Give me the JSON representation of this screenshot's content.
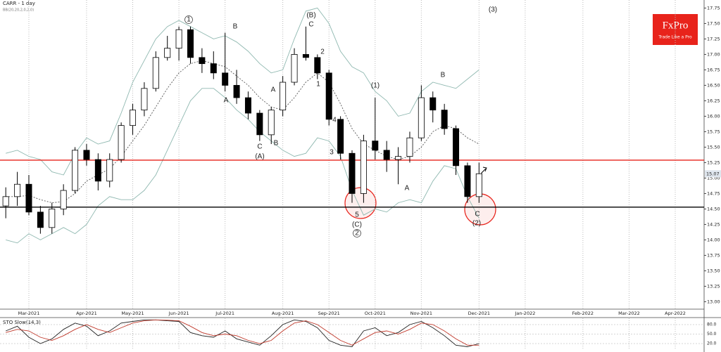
{
  "chart_data": {
    "type": "candlestick",
    "title": "CARR - 1 day",
    "subtitle": "BB(20,20,2,0,2,0)",
    "brand": {
      "name": "FxPro",
      "tagline": "Trade Like a Pro"
    },
    "categories": [
      null,
      null,
      "Mar-2021",
      null,
      null,
      null,
      null,
      "Apr-2021",
      null,
      null,
      null,
      "May-2021",
      null,
      null,
      null,
      "Jun-2021",
      null,
      null,
      null,
      "Jul-2021",
      null,
      null,
      null,
      null,
      "Aug-2021",
      null,
      null,
      null,
      "Sep-2021",
      null,
      null,
      null,
      "Oct-2021",
      null,
      null,
      null,
      "Nov-2021",
      null,
      null,
      null,
      null,
      "Dec-2021",
      null,
      null,
      null,
      "Jan-2022",
      null,
      null,
      null,
      null,
      "Feb-2022",
      null,
      null,
      null,
      "Mar-2022",
      null,
      null,
      null,
      "Apr-2022",
      null,
      null
    ],
    "open": [
      14.55,
      14.7,
      14.9,
      14.45,
      14.2,
      14.5,
      14.8,
      15.45,
      15.3,
      14.95,
      15.3,
      15.85,
      16.1,
      16.45,
      16.95,
      17.1,
      17.4,
      16.95,
      16.85,
      16.7,
      16.5,
      16.3,
      16.05,
      15.7,
      16.1,
      16.55,
      17.0,
      16.95,
      16.7,
      15.95,
      15.4,
      14.75,
      15.6,
      15.45,
      15.3,
      15.35,
      15.65,
      16.3,
      16.1,
      15.8,
      15.2,
      14.7,
      null,
      null,
      null,
      null,
      null,
      null,
      null,
      null,
      null,
      null,
      null,
      null,
      null,
      null,
      null,
      null,
      null,
      null,
      null
    ],
    "high": [
      14.85,
      15.1,
      15.05,
      14.55,
      14.6,
      14.9,
      15.5,
      15.55,
      15.4,
      15.4,
      15.9,
      16.2,
      16.55,
      17.05,
      17.3,
      17.45,
      17.45,
      17.1,
      17.05,
      17.35,
      16.75,
      16.4,
      16.1,
      16.15,
      16.65,
      17.1,
      17.45,
      17.0,
      16.75,
      16.0,
      15.45,
      15.7,
      16.3,
      15.6,
      15.5,
      15.75,
      16.5,
      16.4,
      16.2,
      15.85,
      15.25,
      15.25,
      null,
      null,
      null,
      null,
      null,
      null,
      null,
      null,
      null,
      null,
      null,
      null,
      null,
      null,
      null,
      null,
      null,
      null,
      null
    ],
    "low": [
      14.35,
      14.55,
      14.4,
      14.1,
      14.1,
      14.4,
      14.75,
      15.2,
      14.8,
      14.85,
      15.25,
      15.7,
      16.0,
      16.4,
      16.9,
      16.9,
      16.85,
      16.7,
      16.6,
      16.4,
      16.2,
      15.95,
      15.6,
      15.55,
      16.0,
      16.5,
      16.9,
      16.6,
      15.85,
      15.3,
      14.6,
      14.6,
      15.3,
      15.1,
      14.9,
      15.25,
      15.6,
      15.9,
      15.7,
      15.05,
      14.6,
      14.6,
      null,
      null,
      null,
      null,
      null,
      null,
      null,
      null,
      null,
      null,
      null,
      null,
      null,
      null,
      null,
      null,
      null,
      null,
      null
    ],
    "close": [
      14.7,
      14.9,
      14.45,
      14.2,
      14.5,
      14.8,
      15.45,
      15.3,
      14.95,
      15.3,
      15.85,
      16.1,
      16.45,
      16.95,
      17.1,
      17.4,
      16.95,
      16.85,
      16.7,
      16.5,
      16.3,
      16.05,
      15.7,
      16.1,
      16.55,
      17.0,
      16.95,
      16.7,
      15.95,
      15.4,
      14.75,
      15.6,
      15.45,
      15.3,
      15.35,
      15.65,
      16.3,
      16.1,
      15.8,
      15.2,
      14.7,
      15.07,
      null,
      null,
      null,
      null,
      null,
      null,
      null,
      null,
      null,
      null,
      null,
      null,
      null,
      null,
      null,
      null,
      null,
      null,
      null
    ],
    "series": [
      {
        "name": "BB upper",
        "color": "#8fb8b0",
        "dash": false,
        "values": [
          15.4,
          15.45,
          15.35,
          15.3,
          15.1,
          15.05,
          15.4,
          15.65,
          15.55,
          15.6,
          16.05,
          16.55,
          16.9,
          17.25,
          17.45,
          17.55,
          17.45,
          17.35,
          17.25,
          17.3,
          17.2,
          17.05,
          16.85,
          16.7,
          16.75,
          17.25,
          17.7,
          17.75,
          17.5,
          17.05,
          16.8,
          16.7,
          16.4,
          16.25,
          16.0,
          16.05,
          16.4,
          16.55,
          16.5,
          16.45,
          16.6,
          16.75,
          null,
          null,
          null,
          null,
          null,
          null,
          null,
          null,
          null,
          null,
          null,
          null,
          null,
          null,
          null,
          null,
          null,
          null,
          null
        ]
      },
      {
        "name": "BB middle",
        "color": "#555555",
        "dash": true,
        "values": [
          14.7,
          14.7,
          14.72,
          14.65,
          14.6,
          14.62,
          14.75,
          14.95,
          15.05,
          15.15,
          15.35,
          15.6,
          15.85,
          16.15,
          16.45,
          16.7,
          16.85,
          16.9,
          16.85,
          16.8,
          16.65,
          16.5,
          16.3,
          16.15,
          16.1,
          16.3,
          16.55,
          16.7,
          16.55,
          16.2,
          15.8,
          15.55,
          15.45,
          15.35,
          15.3,
          15.35,
          15.5,
          15.75,
          15.85,
          15.8,
          15.65,
          15.55,
          null,
          null,
          null,
          null,
          null,
          null,
          null,
          null,
          null,
          null,
          null,
          null,
          null,
          null,
          null,
          null,
          null,
          null,
          null
        ]
      },
      {
        "name": "BB lower",
        "color": "#8fb8b0",
        "dash": false,
        "values": [
          14.0,
          13.95,
          14.1,
          14.0,
          14.1,
          14.2,
          14.1,
          14.25,
          14.55,
          14.7,
          14.65,
          14.65,
          14.8,
          15.05,
          15.45,
          15.85,
          16.25,
          16.45,
          16.45,
          16.3,
          16.1,
          15.95,
          15.75,
          15.6,
          15.45,
          15.35,
          15.4,
          15.65,
          15.6,
          15.35,
          14.8,
          14.4,
          14.5,
          14.45,
          14.6,
          14.65,
          14.6,
          14.95,
          15.2,
          15.15,
          14.7,
          14.35,
          null,
          null,
          null,
          null,
          null,
          null,
          null,
          null,
          null,
          null,
          null,
          null,
          null,
          null,
          null,
          null,
          null,
          null,
          null
        ]
      }
    ],
    "levels": [
      {
        "value": 15.29,
        "color": "#e8231b"
      },
      {
        "value": 14.53,
        "color": "#000000"
      }
    ],
    "ylim": [
      12.88,
      17.88
    ],
    "yticks": [
      {
        "value": 13,
        "label": "13.00"
      },
      {
        "value": 13.25,
        "label": "13.25"
      },
      {
        "value": 13.5,
        "label": "13.50"
      },
      {
        "value": 13.75,
        "label": "13.75"
      },
      {
        "value": 14,
        "label": "14.00"
      },
      {
        "value": 14.25,
        "label": "14.25"
      },
      {
        "value": 14.5,
        "label": "14.50"
      },
      {
        "value": 14.75,
        "label": "14.75"
      },
      {
        "value": 15,
        "label": "15.00"
      },
      {
        "value": 15.25,
        "label": "15.25"
      },
      {
        "value": 15.5,
        "label": "15.50"
      },
      {
        "value": 15.75,
        "label": "15.75"
      },
      {
        "value": 16,
        "label": "16.00"
      },
      {
        "value": 16.25,
        "label": "16.25"
      },
      {
        "value": 16.5,
        "label": "16.50"
      },
      {
        "value": 16.75,
        "label": "16.75"
      },
      {
        "value": 17,
        "label": "17.00"
      },
      {
        "value": 17.25,
        "label": "17.25"
      },
      {
        "value": 17.5,
        "label": "17.50"
      },
      {
        "value": 17.75,
        "label": "17.75"
      }
    ],
    "grid": true,
    "annotations": [
      "1",
      "B",
      "(B)",
      "C",
      "2",
      "1",
      "A",
      "A",
      "C",
      "(A)",
      "B",
      "(1)",
      "4",
      "3",
      "5",
      "(C)",
      "2",
      "B",
      "A",
      "C",
      "(2)",
      "(3)"
    ],
    "oscillator": {
      "title": "STO Slow(14,3)",
      "ylim": [
        0,
        100
      ],
      "yticks": [
        {
          "value": 20,
          "label": "20.0"
        },
        {
          "value": 50,
          "label": "50.0"
        },
        {
          "value": 80,
          "label": "80.0"
        }
      ],
      "series": [
        {
          "name": "%K",
          "color": "#222222",
          "values": [
            60,
            75,
            40,
            20,
            35,
            65,
            85,
            75,
            45,
            60,
            85,
            90,
            95,
            95,
            92,
            90,
            55,
            45,
            40,
            60,
            35,
            25,
            15,
            45,
            80,
            95,
            90,
            70,
            30,
            15,
            10,
            60,
            70,
            45,
            55,
            80,
            90,
            70,
            45,
            15,
            10,
            20,
            null,
            null,
            null,
            null,
            null,
            null,
            null,
            null,
            null,
            null,
            null,
            null,
            null,
            null,
            null,
            null,
            null,
            null,
            null
          ]
        },
        {
          "name": "%D",
          "color": "#c0392b",
          "values": [
            55,
            65,
            60,
            40,
            30,
            45,
            65,
            80,
            65,
            55,
            70,
            85,
            92,
            95,
            94,
            92,
            75,
            55,
            45,
            50,
            45,
            30,
            20,
            30,
            60,
            85,
            92,
            80,
            55,
            30,
            15,
            35,
            55,
            60,
            50,
            65,
            85,
            80,
            60,
            35,
            15,
            15,
            null,
            null,
            null,
            null,
            null,
            null,
            null,
            null,
            null,
            null,
            null,
            null,
            null,
            null,
            null,
            null,
            null,
            null,
            null
          ]
        }
      ]
    }
  }
}
